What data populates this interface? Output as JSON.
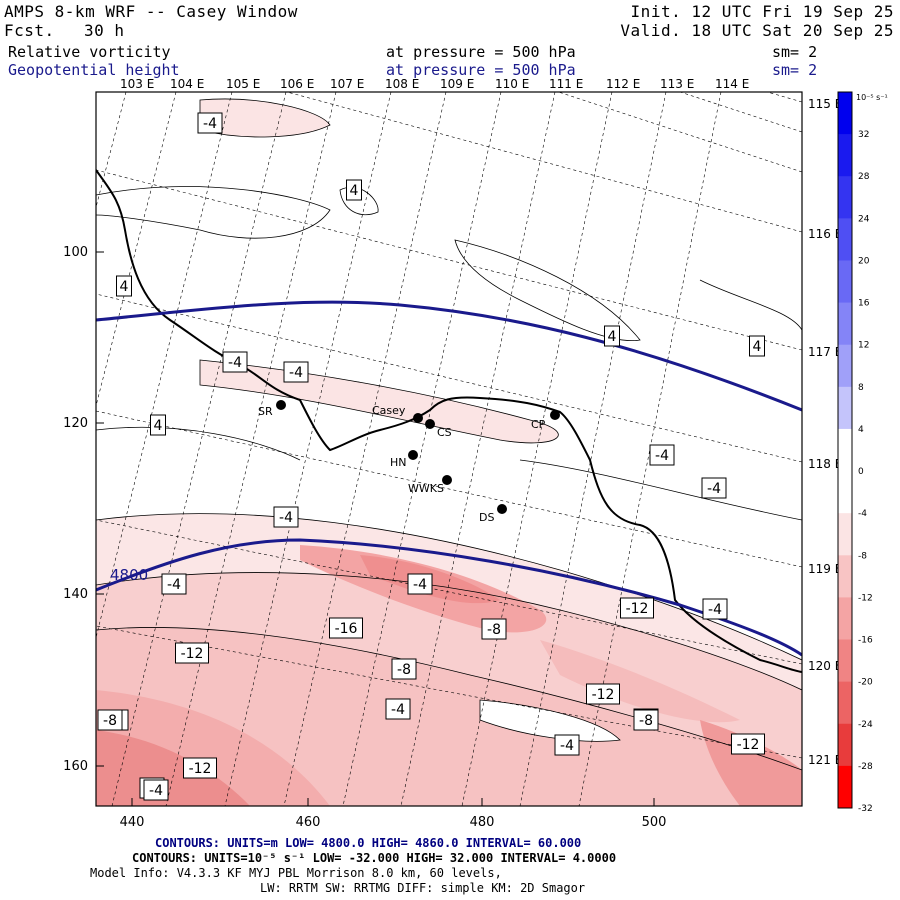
{
  "header": {
    "title": "AMPS 8-km WRF -- Casey Window",
    "init": "Init. 12 UTC Fri 19 Sep 25",
    "fcst_label": "Fcst.",
    "fcst_value": "30 h",
    "valid": "Valid. 18 UTC Sat 20 Sep 25"
  },
  "fields": [
    {
      "name": "Relative vorticity",
      "level": "at pressure =  500 hPa",
      "smooth": "sm= 2"
    },
    {
      "name": "Geopotential height",
      "level": "at pressure =  500 hPa",
      "smooth": "sm= 2"
    }
  ],
  "map": {
    "lon_top_labels": [
      "103 E",
      "104 E",
      "105 E",
      "106 E",
      "107 E",
      "108 E",
      "109 E",
      "110 E",
      "111 E",
      "112 E",
      "113 E",
      "114 E"
    ],
    "lon_right_labels": [
      "115 E",
      "116 E",
      "117 E",
      "118 E",
      "119 E",
      "120 E",
      "121 E"
    ],
    "y_ticks": [
      "100",
      "120",
      "140",
      "160"
    ],
    "x_ticks": [
      "440",
      "460",
      "480",
      "500"
    ],
    "stations": [
      {
        "code": "SR"
      },
      {
        "code": "Casey"
      },
      {
        "code": "CS"
      },
      {
        "code": "CP"
      },
      {
        "code": "HN"
      },
      {
        "code": "WWKS"
      },
      {
        "code": "DS"
      }
    ],
    "height_label": "4800",
    "contour_labels": [
      "-4",
      "4",
      "4",
      "4",
      "-4",
      "-4",
      "4",
      "4",
      "-4",
      "-4",
      "-4",
      "-4",
      "-4",
      "-4",
      "-16",
      "-12",
      "-8",
      "-8",
      "-8",
      "-12",
      "-12",
      "-8",
      "-4",
      "-4",
      "-8",
      "-12",
      "-12",
      "-4",
      "-8",
      "-4"
    ]
  },
  "colorbar": {
    "unit": "10⁻⁵ s⁻¹",
    "labels": [
      "32",
      "28",
      "24",
      "20",
      "16",
      "12",
      "8",
      "4",
      "0",
      "-4",
      "-8",
      "-12",
      "-16",
      "-20",
      "-24",
      "-28",
      "-32"
    ],
    "colors": [
      "#0000ee",
      "#1a1aef",
      "#3434f1",
      "#4f4ff3",
      "#6969f5",
      "#8484f7",
      "#a0a0f9",
      "#c4c4fb",
      "#ffffff",
      "#ffffff",
      "#fbe4e4",
      "#f8c4c4",
      "#f4a4a4",
      "#f08484",
      "#ec6464",
      "#e83c3c",
      "#ff0000"
    ]
  },
  "footer": {
    "contours1": "CONTOURS:  UNITS=m  LOW=  4800.0        HIGH=  4860.0       INTERVAL=   60.000",
    "contours2": "CONTOURS:  UNITS=10⁻⁵ s⁻¹  LOW= -32.000       HIGH=  32.000     INTERVAL=   4.0000",
    "model1": "Model Info: V4.3.3    KF     MYJ PBL  Morrison           8.0 km,  60 levels,",
    "model2": "LW: RRTM SW: RRTMG   DIFF: simple KM: 2D Smagor"
  }
}
